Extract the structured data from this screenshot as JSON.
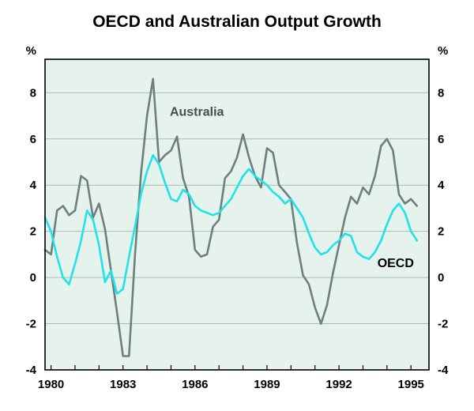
{
  "chart_data": {
    "type": "line",
    "title": "OECD and Australian Output Growth",
    "y_unit_label": "%",
    "xlabel": "",
    "ylabel": "%",
    "xlim": [
      1979.75,
      1995.75
    ],
    "ylim": [
      -4,
      9.45
    ],
    "xticks": [
      1980,
      1983,
      1986,
      1989,
      1992,
      1995
    ],
    "yticks": [
      -4,
      -2,
      0,
      2,
      4,
      6,
      8
    ],
    "gridlines": [
      -2,
      0,
      2,
      4,
      6,
      8
    ],
    "grid": true,
    "plot_bg": "#e6f3ec",
    "grid_color": "#a8bdb2",
    "axis_color": "#000000",
    "legend_position": "inline-annotations",
    "x": [
      1979.75,
      1980,
      1980.25,
      1980.5,
      1980.75,
      1981,
      1981.25,
      1981.5,
      1981.75,
      1982,
      1982.25,
      1982.5,
      1982.75,
      1983,
      1983.25,
      1983.5,
      1983.75,
      1984,
      1984.25,
      1984.5,
      1984.75,
      1985,
      1985.25,
      1985.5,
      1985.75,
      1986,
      1986.25,
      1986.5,
      1986.75,
      1987,
      1987.25,
      1987.5,
      1987.75,
      1988,
      1988.25,
      1988.5,
      1988.75,
      1989,
      1989.25,
      1989.5,
      1989.75,
      1990,
      1990.25,
      1990.5,
      1990.75,
      1991,
      1991.25,
      1991.5,
      1991.75,
      1992,
      1992.25,
      1992.5,
      1992.75,
      1993,
      1993.25,
      1993.5,
      1993.75,
      1994,
      1994.25,
      1994.5,
      1994.75,
      1995,
      1995.25
    ],
    "series": [
      {
        "name": "Australia",
        "color": "#6e7f7f",
        "label_color": "#44504f",
        "label_pos": {
          "x": 1984.95,
          "y": 7.0
        },
        "values": [
          1.2,
          1.0,
          2.9,
          3.1,
          2.7,
          2.9,
          4.4,
          4.2,
          2.6,
          3.2,
          2.1,
          0.3,
          -1.5,
          -3.4,
          -3.4,
          1.0,
          4.5,
          7.0,
          8.6,
          5.0,
          5.3,
          5.5,
          6.1,
          4.3,
          3.5,
          1.2,
          0.9,
          1.0,
          2.2,
          2.5,
          4.3,
          4.6,
          5.2,
          6.2,
          5.2,
          4.4,
          3.9,
          5.6,
          5.4,
          4.0,
          3.7,
          3.4,
          1.5,
          0.1,
          -0.3,
          -1.3,
          -2.0,
          -1.2,
          0.2,
          1.4,
          2.6,
          3.5,
          3.2,
          3.9,
          3.6,
          4.4,
          5.7,
          6.0,
          5.5,
          3.6,
          3.2,
          3.4,
          3.1
        ]
      },
      {
        "name": "OECD",
        "color": "#1fe3e8",
        "label_color": "#000000",
        "label_pos": {
          "x": 1993.6,
          "y": 0.45
        },
        "values": [
          2.6,
          2.0,
          0.9,
          0.0,
          -0.3,
          0.6,
          1.6,
          2.9,
          2.5,
          1.4,
          -0.2,
          0.3,
          -0.7,
          -0.5,
          0.9,
          2.2,
          3.6,
          4.6,
          5.3,
          4.9,
          4.1,
          3.4,
          3.3,
          3.8,
          3.6,
          3.1,
          2.9,
          2.8,
          2.7,
          2.8,
          3.1,
          3.4,
          3.9,
          4.4,
          4.7,
          4.4,
          4.2,
          4.0,
          3.7,
          3.5,
          3.2,
          3.4,
          3.0,
          2.6,
          1.9,
          1.3,
          1.0,
          1.1,
          1.4,
          1.6,
          1.9,
          1.8,
          1.1,
          0.9,
          0.8,
          1.1,
          1.6,
          2.3,
          2.9,
          3.2,
          2.8,
          2.0,
          1.6
        ]
      }
    ]
  }
}
